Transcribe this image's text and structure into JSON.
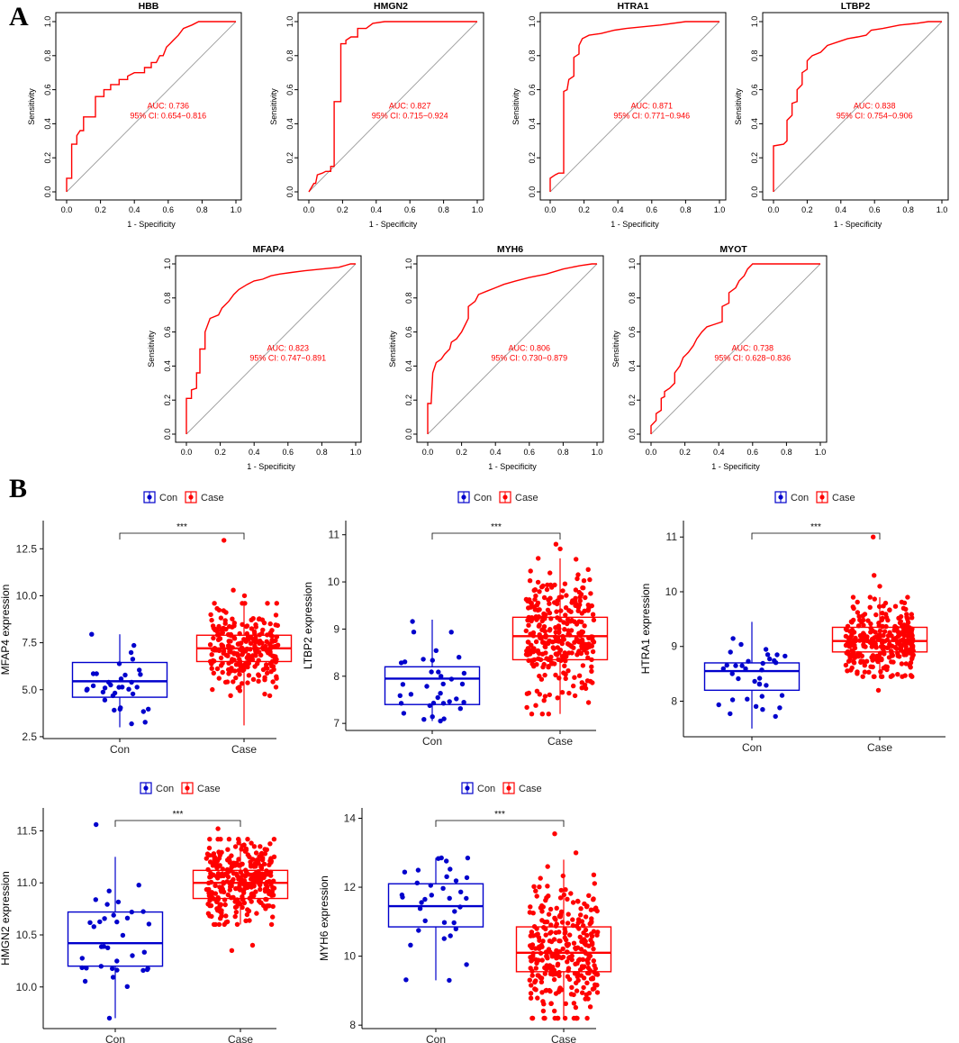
{
  "panel_labels": [
    "A",
    "B"
  ],
  "chart_data": [
    {
      "type": "line",
      "subtype": "roc",
      "title": "HBB",
      "xlabel": "1 - Specificity",
      "ylabel": "Sensitivity",
      "xlim": [
        0,
        1
      ],
      "ylim": [
        0,
        1
      ],
      "ticks": [
        "0.0",
        "0.2",
        "0.4",
        "0.6",
        "0.8",
        "1.0"
      ],
      "auc": "AUC: 0.736",
      "ci": "95% CI: 0.654−0.816",
      "roc_points": [
        [
          0,
          0
        ],
        [
          0,
          0.08
        ],
        [
          0.03,
          0.08
        ],
        [
          0.03,
          0.28
        ],
        [
          0.06,
          0.28
        ],
        [
          0.06,
          0.33
        ],
        [
          0.08,
          0.36
        ],
        [
          0.1,
          0.36
        ],
        [
          0.1,
          0.44
        ],
        [
          0.14,
          0.44
        ],
        [
          0.17,
          0.44
        ],
        [
          0.17,
          0.56
        ],
        [
          0.22,
          0.56
        ],
        [
          0.22,
          0.6
        ],
        [
          0.26,
          0.6
        ],
        [
          0.26,
          0.63
        ],
        [
          0.31,
          0.63
        ],
        [
          0.31,
          0.66
        ],
        [
          0.36,
          0.66
        ],
        [
          0.36,
          0.68
        ],
        [
          0.4,
          0.7
        ],
        [
          0.46,
          0.7
        ],
        [
          0.46,
          0.73
        ],
        [
          0.5,
          0.73
        ],
        [
          0.5,
          0.76
        ],
        [
          0.53,
          0.76
        ],
        [
          0.55,
          0.8
        ],
        [
          0.57,
          0.8
        ],
        [
          0.59,
          0.85
        ],
        [
          0.61,
          0.87
        ],
        [
          0.63,
          0.89
        ],
        [
          0.66,
          0.92
        ],
        [
          0.69,
          0.96
        ],
        [
          0.74,
          0.98
        ],
        [
          0.78,
          1.0
        ],
        [
          1,
          1
        ]
      ]
    },
    {
      "type": "line",
      "subtype": "roc",
      "title": "HMGN2",
      "xlabel": "1 - Specificity",
      "ylabel": "Sensitivity",
      "xlim": [
        0,
        1
      ],
      "ylim": [
        0,
        1
      ],
      "ticks": [
        "0.0",
        "0.2",
        "0.4",
        "0.6",
        "0.8",
        "1.0"
      ],
      "auc": "AUC: 0.827",
      "ci": "95% CI: 0.715−0.924",
      "roc_points": [
        [
          0,
          0
        ],
        [
          0.03,
          0.05
        ],
        [
          0.04,
          0.05
        ],
        [
          0.05,
          0.1
        ],
        [
          0.08,
          0.11
        ],
        [
          0.1,
          0.12
        ],
        [
          0.13,
          0.12
        ],
        [
          0.13,
          0.15
        ],
        [
          0.15,
          0.15
        ],
        [
          0.15,
          0.53
        ],
        [
          0.19,
          0.53
        ],
        [
          0.19,
          0.87
        ],
        [
          0.22,
          0.87
        ],
        [
          0.22,
          0.89
        ],
        [
          0.25,
          0.91
        ],
        [
          0.29,
          0.91
        ],
        [
          0.29,
          0.96
        ],
        [
          0.34,
          0.96
        ],
        [
          0.38,
          0.99
        ],
        [
          0.45,
          1.0
        ],
        [
          1,
          1
        ]
      ]
    },
    {
      "type": "line",
      "subtype": "roc",
      "title": "HTRA1",
      "xlabel": "1 - Specificity",
      "ylabel": "Sensitivity",
      "xlim": [
        0,
        1
      ],
      "ylim": [
        0,
        1
      ],
      "ticks": [
        "0.0",
        "0.2",
        "0.4",
        "0.6",
        "0.8",
        "1.0"
      ],
      "auc": "AUC: 0.871",
      "ci": "95% CI: 0.771−0.946",
      "roc_points": [
        [
          0,
          0
        ],
        [
          0,
          0.08
        ],
        [
          0.03,
          0.1
        ],
        [
          0.05,
          0.11
        ],
        [
          0.08,
          0.11
        ],
        [
          0.08,
          0.59
        ],
        [
          0.1,
          0.6
        ],
        [
          0.11,
          0.66
        ],
        [
          0.14,
          0.68
        ],
        [
          0.14,
          0.79
        ],
        [
          0.17,
          0.81
        ],
        [
          0.17,
          0.86
        ],
        [
          0.19,
          0.9
        ],
        [
          0.23,
          0.92
        ],
        [
          0.3,
          0.93
        ],
        [
          0.38,
          0.95
        ],
        [
          0.45,
          0.96
        ],
        [
          0.55,
          0.97
        ],
        [
          0.65,
          0.98
        ],
        [
          0.8,
          1.0
        ],
        [
          1,
          1
        ]
      ]
    },
    {
      "type": "line",
      "subtype": "roc",
      "title": "LTBP2",
      "xlabel": "1 - Specificity",
      "ylabel": "Sensitivity",
      "xlim": [
        0,
        1
      ],
      "ylim": [
        0,
        1
      ],
      "ticks": [
        "0.0",
        "0.2",
        "0.4",
        "0.6",
        "0.8",
        "1.0"
      ],
      "auc": "AUC: 0.838",
      "ci": "95% CI: 0.754−0.906",
      "roc_points": [
        [
          0,
          0
        ],
        [
          0,
          0.27
        ],
        [
          0.06,
          0.28
        ],
        [
          0.08,
          0.3
        ],
        [
          0.08,
          0.42
        ],
        [
          0.11,
          0.45
        ],
        [
          0.11,
          0.52
        ],
        [
          0.14,
          0.53
        ],
        [
          0.14,
          0.6
        ],
        [
          0.17,
          0.63
        ],
        [
          0.17,
          0.7
        ],
        [
          0.2,
          0.72
        ],
        [
          0.2,
          0.77
        ],
        [
          0.23,
          0.8
        ],
        [
          0.28,
          0.82
        ],
        [
          0.32,
          0.86
        ],
        [
          0.38,
          0.88
        ],
        [
          0.44,
          0.9
        ],
        [
          0.5,
          0.91
        ],
        [
          0.55,
          0.92
        ],
        [
          0.58,
          0.95
        ],
        [
          0.65,
          0.96
        ],
        [
          0.75,
          0.98
        ],
        [
          0.85,
          0.99
        ],
        [
          0.92,
          1.0
        ],
        [
          1,
          1
        ]
      ]
    },
    {
      "type": "line",
      "subtype": "roc",
      "title": "MFAP4",
      "xlabel": "1 - Specificity",
      "ylabel": "Sensitivity",
      "xlim": [
        0,
        1
      ],
      "ylim": [
        0,
        1
      ],
      "ticks": [
        "0.0",
        "0.2",
        "0.4",
        "0.6",
        "0.8",
        "1.0"
      ],
      "auc": "AUC: 0.823",
      "ci": "95% CI: 0.747−0.891",
      "roc_points": [
        [
          0,
          0
        ],
        [
          0,
          0.21
        ],
        [
          0.03,
          0.21
        ],
        [
          0.03,
          0.26
        ],
        [
          0.06,
          0.27
        ],
        [
          0.06,
          0.36
        ],
        [
          0.08,
          0.36
        ],
        [
          0.08,
          0.5
        ],
        [
          0.11,
          0.5
        ],
        [
          0.11,
          0.6
        ],
        [
          0.14,
          0.68
        ],
        [
          0.19,
          0.7
        ],
        [
          0.21,
          0.74
        ],
        [
          0.25,
          0.78
        ],
        [
          0.28,
          0.82
        ],
        [
          0.31,
          0.85
        ],
        [
          0.36,
          0.88
        ],
        [
          0.4,
          0.9
        ],
        [
          0.45,
          0.91
        ],
        [
          0.5,
          0.93
        ],
        [
          0.55,
          0.94
        ],
        [
          0.62,
          0.95
        ],
        [
          0.7,
          0.96
        ],
        [
          0.8,
          0.97
        ],
        [
          0.9,
          0.98
        ],
        [
          0.97,
          1.0
        ],
        [
          1,
          1
        ]
      ]
    },
    {
      "type": "line",
      "subtype": "roc",
      "title": "MYH6",
      "xlabel": "1 - Specificity",
      "ylabel": "Sensitivity",
      "xlim": [
        0,
        1
      ],
      "ylim": [
        0,
        1
      ],
      "ticks": [
        "0.0",
        "0.2",
        "0.4",
        "0.6",
        "0.8",
        "1.0"
      ],
      "auc": "AUC: 0.806",
      "ci": "95% CI: 0.730−0.879",
      "roc_points": [
        [
          0,
          0
        ],
        [
          0,
          0.18
        ],
        [
          0.02,
          0.18
        ],
        [
          0.03,
          0.36
        ],
        [
          0.05,
          0.42
        ],
        [
          0.08,
          0.44
        ],
        [
          0.1,
          0.47
        ],
        [
          0.13,
          0.5
        ],
        [
          0.14,
          0.54
        ],
        [
          0.17,
          0.56
        ],
        [
          0.2,
          0.6
        ],
        [
          0.22,
          0.64
        ],
        [
          0.24,
          0.68
        ],
        [
          0.24,
          0.75
        ],
        [
          0.28,
          0.78
        ],
        [
          0.3,
          0.82
        ],
        [
          0.35,
          0.84
        ],
        [
          0.4,
          0.86
        ],
        [
          0.45,
          0.88
        ],
        [
          0.52,
          0.9
        ],
        [
          0.6,
          0.92
        ],
        [
          0.7,
          0.94
        ],
        [
          0.8,
          0.97
        ],
        [
          0.9,
          0.99
        ],
        [
          0.97,
          1.0
        ],
        [
          1,
          1
        ]
      ]
    },
    {
      "type": "line",
      "subtype": "roc",
      "title": "MYOT",
      "xlabel": "1 - Specificity",
      "ylabel": "Sensitivity",
      "xlim": [
        0,
        1
      ],
      "ylim": [
        0,
        1
      ],
      "ticks": [
        "0.0",
        "0.2",
        "0.4",
        "0.6",
        "0.8",
        "1.0"
      ],
      "auc": "AUC: 0.738",
      "ci": "95% CI: 0.628−0.836",
      "roc_points": [
        [
          0,
          0
        ],
        [
          0,
          0.05
        ],
        [
          0.03,
          0.08
        ],
        [
          0.03,
          0.12
        ],
        [
          0.06,
          0.14
        ],
        [
          0.06,
          0.21
        ],
        [
          0.08,
          0.22
        ],
        [
          0.08,
          0.25
        ],
        [
          0.11,
          0.27
        ],
        [
          0.14,
          0.3
        ],
        [
          0.14,
          0.36
        ],
        [
          0.17,
          0.4
        ],
        [
          0.19,
          0.45
        ],
        [
          0.22,
          0.48
        ],
        [
          0.25,
          0.52
        ],
        [
          0.27,
          0.56
        ],
        [
          0.3,
          0.6
        ],
        [
          0.33,
          0.63
        ],
        [
          0.36,
          0.64
        ],
        [
          0.42,
          0.66
        ],
        [
          0.42,
          0.75
        ],
        [
          0.46,
          0.77
        ],
        [
          0.46,
          0.83
        ],
        [
          0.5,
          0.86
        ],
        [
          0.52,
          0.9
        ],
        [
          0.55,
          0.93
        ],
        [
          0.57,
          0.97
        ],
        [
          0.6,
          1.0
        ],
        [
          1,
          1
        ]
      ]
    },
    {
      "type": "boxplot",
      "ylabel": "MFAP4 expression",
      "categories": [
        "Con",
        "Case"
      ],
      "legend": [
        "Con",
        "Case"
      ],
      "yticks": [
        2.5,
        5.0,
        7.5,
        10.0,
        12.5
      ],
      "ytick_labels": [
        "2.5",
        "5.0",
        "7.5",
        "10.0",
        "12.5"
      ],
      "ylim": [
        2.4,
        14.0
      ],
      "significance": "***",
      "boxes": [
        {
          "group": "Con",
          "min": 3.0,
          "q1": 4.6,
          "median": 5.45,
          "q3": 6.45,
          "max": 7.95,
          "n": 35,
          "outliers": []
        },
        {
          "group": "Case",
          "min": 3.1,
          "q1": 6.5,
          "median": 7.2,
          "q3": 7.9,
          "max": 9.6,
          "n": 260,
          "outliers": [
            12.95,
            10.3,
            10.0
          ]
        }
      ]
    },
    {
      "type": "boxplot",
      "ylabel": "LTBP2 expression",
      "categories": [
        "Con",
        "Case"
      ],
      "legend": [
        "Con",
        "Case"
      ],
      "yticks": [
        7,
        8,
        9,
        10,
        11
      ],
      "ytick_labels": [
        "7",
        "8",
        "9",
        "10",
        "11"
      ],
      "ylim": [
        6.85,
        11.3
      ],
      "significance": "***",
      "boxes": [
        {
          "group": "Con",
          "min": 7.05,
          "q1": 7.4,
          "median": 7.95,
          "q3": 8.2,
          "max": 9.2,
          "n": 35,
          "outliers": []
        },
        {
          "group": "Case",
          "min": 7.2,
          "q1": 8.35,
          "median": 8.85,
          "q3": 9.25,
          "max": 10.5,
          "n": 300,
          "outliers": [
            10.8,
            10.7
          ]
        }
      ]
    },
    {
      "type": "boxplot",
      "ylabel": "HTRA1 expression",
      "categories": [
        "Con",
        "Case"
      ],
      "legend": [
        "Con",
        "Case"
      ],
      "yticks": [
        8,
        9,
        10,
        11
      ],
      "ytick_labels": [
        "8",
        "9",
        "10",
        "11"
      ],
      "ylim": [
        7.35,
        11.3
      ],
      "significance": "***",
      "boxes": [
        {
          "group": "Con",
          "min": 7.5,
          "q1": 8.2,
          "median": 8.55,
          "q3": 8.7,
          "max": 9.45,
          "n": 35,
          "outliers": []
        },
        {
          "group": "Case",
          "min": 8.45,
          "q1": 8.9,
          "median": 9.1,
          "q3": 9.35,
          "max": 9.9,
          "n": 300,
          "outliers": [
            11.0,
            10.3,
            10.1,
            8.2
          ]
        }
      ]
    },
    {
      "type": "boxplot",
      "ylabel": "HMGN2 expression",
      "categories": [
        "Con",
        "Case"
      ],
      "legend": [
        "Con",
        "Case"
      ],
      "yticks": [
        10.0,
        10.5,
        11.0,
        11.5
      ],
      "ytick_labels": [
        "10.0",
        "10.5",
        "11.0",
        "11.5"
      ],
      "ylim": [
        9.6,
        11.72
      ],
      "significance": "***",
      "boxes": [
        {
          "group": "Con",
          "min": 9.7,
          "q1": 10.2,
          "median": 10.42,
          "q3": 10.72,
          "max": 11.25,
          "n": 35,
          "outliers": [
            11.56
          ]
        },
        {
          "group": "Case",
          "min": 10.6,
          "q1": 10.85,
          "median": 11.0,
          "q3": 11.12,
          "max": 11.42,
          "n": 300,
          "outliers": [
            10.35,
            10.4,
            11.52
          ]
        }
      ]
    },
    {
      "type": "boxplot",
      "ylabel": "MYH6 expression",
      "categories": [
        "Con",
        "Case"
      ],
      "legend": [
        "Con",
        "Case"
      ],
      "yticks": [
        8,
        10,
        12,
        14
      ],
      "ytick_labels": [
        "8",
        "10",
        "12",
        "14"
      ],
      "ylim": [
        7.9,
        14.3
      ],
      "significance": "***",
      "boxes": [
        {
          "group": "Con",
          "min": 9.3,
          "q1": 10.85,
          "median": 11.45,
          "q3": 12.1,
          "max": 12.85,
          "n": 35,
          "outliers": []
        },
        {
          "group": "Case",
          "min": 8.2,
          "q1": 9.55,
          "median": 10.1,
          "q3": 10.85,
          "max": 12.8,
          "n": 300,
          "outliers": [
            13.55,
            13.0
          ]
        }
      ]
    }
  ]
}
